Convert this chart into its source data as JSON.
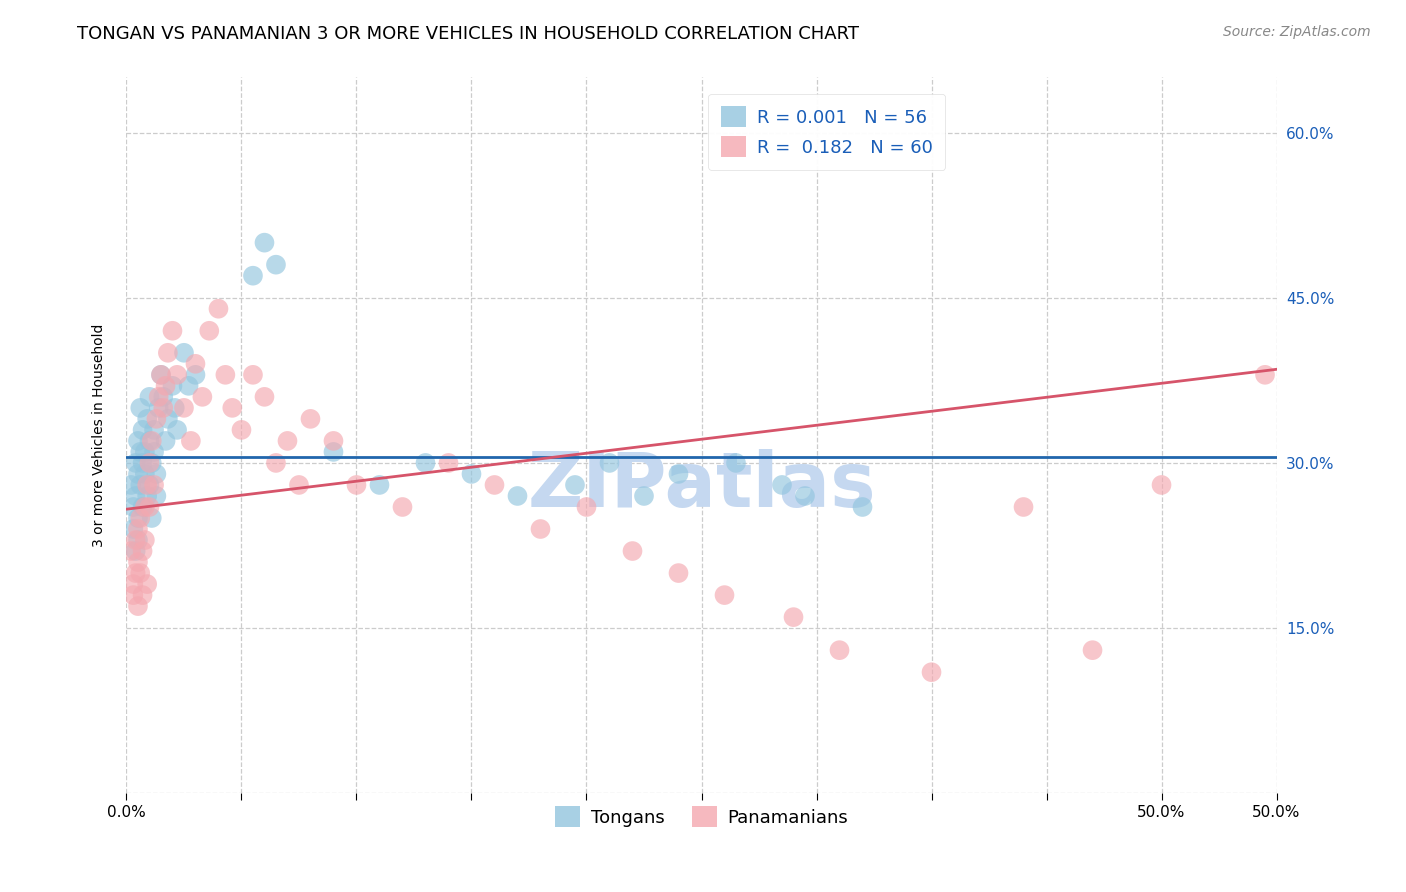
{
  "title": "TONGAN VS PANAMANIAN 3 OR MORE VEHICLES IN HOUSEHOLD CORRELATION CHART",
  "source": "Source: ZipAtlas.com",
  "ylabel": "3 or more Vehicles in Household",
  "xlabel_tongans": "Tongans",
  "xlabel_panamanians": "Panamanians",
  "watermark": "ZIPatlas",
  "xlim": [
    0.0,
    0.5
  ],
  "ylim": [
    0.0,
    0.65
  ],
  "xticks": [
    0.0,
    0.05,
    0.1,
    0.15,
    0.2,
    0.25,
    0.3,
    0.35,
    0.4,
    0.45,
    0.5
  ],
  "xticklabels_shown": {
    "0.0": "0.0%",
    "0.5": "50.0%"
  },
  "yticks": [
    0.0,
    0.15,
    0.3,
    0.45,
    0.6
  ],
  "yticklabels_right": [
    "",
    "15.0%",
    "30.0%",
    "45.0%",
    "60.0%"
  ],
  "blue_color": "#92c5de",
  "pink_color": "#f4a8b0",
  "trend_blue_color": "#2166ac",
  "trend_pink_color": "#d6546a",
  "legend_text_color": "#1a5eb8",
  "grid_color": "#cccccc",
  "background_color": "#ffffff",
  "title_fontsize": 13,
  "source_fontsize": 10,
  "axis_label_fontsize": 10,
  "tick_fontsize": 11,
  "legend_fontsize": 13,
  "watermark_color": "#c5d8f0",
  "watermark_fontsize": 55,
  "blue_trend_y0": 0.305,
  "blue_trend_y1": 0.305,
  "pink_trend_y0": 0.258,
  "pink_trend_y1": 0.385,
  "tongans_x": [
    0.002,
    0.003,
    0.003,
    0.004,
    0.004,
    0.004,
    0.005,
    0.005,
    0.005,
    0.005,
    0.006,
    0.006,
    0.006,
    0.007,
    0.007,
    0.007,
    0.008,
    0.008,
    0.009,
    0.009,
    0.01,
    0.01,
    0.01,
    0.011,
    0.011,
    0.012,
    0.012,
    0.013,
    0.013,
    0.014,
    0.015,
    0.016,
    0.017,
    0.018,
    0.02,
    0.021,
    0.022,
    0.025,
    0.027,
    0.03,
    0.055,
    0.06,
    0.065,
    0.09,
    0.11,
    0.13,
    0.15,
    0.17,
    0.195,
    0.21,
    0.225,
    0.24,
    0.265,
    0.285,
    0.295,
    0.32
  ],
  "tongans_y": [
    0.28,
    0.26,
    0.24,
    0.3,
    0.27,
    0.22,
    0.32,
    0.29,
    0.25,
    0.23,
    0.31,
    0.28,
    0.35,
    0.3,
    0.26,
    0.33,
    0.29,
    0.31,
    0.27,
    0.34,
    0.32,
    0.28,
    0.36,
    0.3,
    0.25,
    0.33,
    0.31,
    0.29,
    0.27,
    0.35,
    0.38,
    0.36,
    0.32,
    0.34,
    0.37,
    0.35,
    0.33,
    0.4,
    0.37,
    0.38,
    0.47,
    0.5,
    0.48,
    0.31,
    0.28,
    0.3,
    0.29,
    0.27,
    0.28,
    0.3,
    0.27,
    0.29,
    0.3,
    0.28,
    0.27,
    0.26
  ],
  "panamanians_x": [
    0.002,
    0.003,
    0.003,
    0.004,
    0.004,
    0.005,
    0.005,
    0.005,
    0.006,
    0.006,
    0.007,
    0.007,
    0.008,
    0.008,
    0.009,
    0.009,
    0.01,
    0.01,
    0.011,
    0.012,
    0.013,
    0.014,
    0.015,
    0.016,
    0.017,
    0.018,
    0.02,
    0.022,
    0.025,
    0.028,
    0.03,
    0.033,
    0.036,
    0.04,
    0.043,
    0.046,
    0.05,
    0.055,
    0.06,
    0.065,
    0.07,
    0.075,
    0.08,
    0.09,
    0.1,
    0.12,
    0.14,
    0.16,
    0.18,
    0.2,
    0.22,
    0.24,
    0.26,
    0.29,
    0.31,
    0.35,
    0.39,
    0.42,
    0.45,
    0.495
  ],
  "panamanians_y": [
    0.22,
    0.19,
    0.18,
    0.23,
    0.2,
    0.24,
    0.21,
    0.17,
    0.25,
    0.2,
    0.22,
    0.18,
    0.26,
    0.23,
    0.28,
    0.19,
    0.3,
    0.26,
    0.32,
    0.28,
    0.34,
    0.36,
    0.38,
    0.35,
    0.37,
    0.4,
    0.42,
    0.38,
    0.35,
    0.32,
    0.39,
    0.36,
    0.42,
    0.44,
    0.38,
    0.35,
    0.33,
    0.38,
    0.36,
    0.3,
    0.32,
    0.28,
    0.34,
    0.32,
    0.28,
    0.26,
    0.3,
    0.28,
    0.24,
    0.26,
    0.22,
    0.2,
    0.18,
    0.16,
    0.13,
    0.11,
    0.26,
    0.13,
    0.28,
    0.38
  ]
}
